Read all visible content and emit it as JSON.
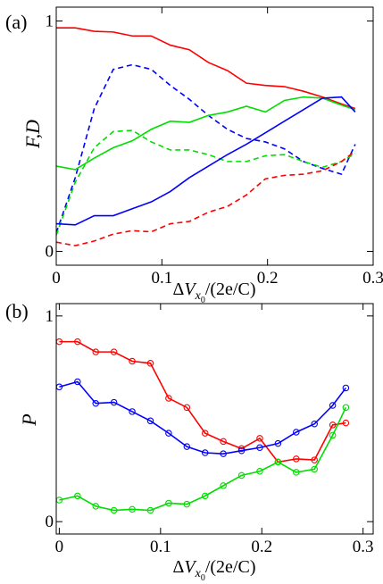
{
  "chart_data": [
    {
      "panel_label": "(a)",
      "type": "line",
      "xlabel": {
        "delta": "Δ",
        "var": "V",
        "sub": "x",
        "subsub": "0",
        "rest": "/(2e/C)"
      },
      "ylabel": "F,D",
      "xlim": [
        0,
        0.3
      ],
      "ylim": [
        -0.06,
        1.06
      ],
      "xticks": [
        0,
        0.1,
        0.2,
        0.3
      ],
      "xtick_labels": [
        "0",
        "0.1",
        "0.2",
        "0.3"
      ],
      "yticks": [
        0,
        1
      ],
      "ytick_labels": [
        "0",
        "1"
      ],
      "series": [
        {
          "color": "#ff0000",
          "style": "solid",
          "x": [
            0,
            0.018,
            0.036,
            0.054,
            0.072,
            0.09,
            0.108,
            0.126,
            0.144,
            0.162,
            0.18,
            0.198,
            0.216,
            0.234,
            0.252,
            0.27,
            0.283
          ],
          "y": [
            0.97,
            0.97,
            0.955,
            0.952,
            0.935,
            0.935,
            0.895,
            0.875,
            0.82,
            0.785,
            0.73,
            0.72,
            0.715,
            0.695,
            0.67,
            0.64,
            0.62
          ]
        },
        {
          "color": "#0000ff",
          "style": "dashed",
          "x": [
            0,
            0.018,
            0.036,
            0.054,
            0.072,
            0.09,
            0.108,
            0.126,
            0.144,
            0.162,
            0.18,
            0.198,
            0.216,
            0.234,
            0.252,
            0.27,
            0.283
          ],
          "y": [
            0.08,
            0.32,
            0.62,
            0.79,
            0.81,
            0.79,
            0.72,
            0.66,
            0.59,
            0.53,
            0.49,
            0.475,
            0.445,
            0.39,
            0.36,
            0.335,
            0.465
          ]
        },
        {
          "color": "#00dd00",
          "style": "solid",
          "x": [
            0,
            0.018,
            0.036,
            0.054,
            0.072,
            0.09,
            0.108,
            0.126,
            0.144,
            0.162,
            0.18,
            0.198,
            0.216,
            0.234,
            0.252,
            0.27,
            0.283
          ],
          "y": [
            0.37,
            0.355,
            0.405,
            0.45,
            0.48,
            0.53,
            0.565,
            0.56,
            0.59,
            0.605,
            0.63,
            0.605,
            0.655,
            0.67,
            0.665,
            0.635,
            0.615
          ]
        },
        {
          "color": "#00dd00",
          "style": "dashed",
          "x": [
            0,
            0.018,
            0.036,
            0.054,
            0.072,
            0.09,
            0.108,
            0.126,
            0.144,
            0.162,
            0.18,
            0.198,
            0.216,
            0.234,
            0.252,
            0.27,
            0.283
          ],
          "y": [
            0.07,
            0.3,
            0.45,
            0.52,
            0.525,
            0.475,
            0.44,
            0.44,
            0.42,
            0.39,
            0.39,
            0.415,
            0.42,
            0.39,
            0.365,
            0.39,
            0.425
          ]
        },
        {
          "color": "#0000ff",
          "style": "solid",
          "x": [
            0,
            0.018,
            0.036,
            0.054,
            0.072,
            0.09,
            0.108,
            0.126,
            0.144,
            0.162,
            0.18,
            0.198,
            0.216,
            0.234,
            0.252,
            0.27,
            0.283
          ],
          "y": [
            0.12,
            0.115,
            0.155,
            0.155,
            0.185,
            0.215,
            0.26,
            0.32,
            0.37,
            0.42,
            0.465,
            0.515,
            0.565,
            0.615,
            0.665,
            0.67,
            0.605
          ]
        },
        {
          "color": "#ff0000",
          "style": "dashed",
          "x": [
            0,
            0.018,
            0.036,
            0.054,
            0.072,
            0.09,
            0.108,
            0.126,
            0.144,
            0.162,
            0.18,
            0.198,
            0.216,
            0.234,
            0.252,
            0.27,
            0.283
          ],
          "y": [
            0.04,
            0.025,
            0.045,
            0.075,
            0.09,
            0.085,
            0.12,
            0.13,
            0.17,
            0.195,
            0.245,
            0.315,
            0.33,
            0.335,
            0.35,
            0.39,
            0.435
          ]
        }
      ]
    },
    {
      "panel_label": "(b)",
      "type": "line",
      "markers": "circle",
      "xlabel": {
        "delta": "Δ",
        "var": "V",
        "sub": "x",
        "subsub": "0",
        "rest": "/(2e/C)"
      },
      "ylabel": "P",
      "xlim": [
        -0.003,
        0.31
      ],
      "ylim": [
        -0.06,
        1.06
      ],
      "xticks": [
        0,
        0.1,
        0.2,
        0.3
      ],
      "xtick_labels": [
        "0",
        "0.1",
        "0.2",
        "0.3"
      ],
      "yticks": [
        0,
        1
      ],
      "ytick_labels": [
        "0",
        "1"
      ],
      "series": [
        {
          "color": "#ff0000",
          "style": "solid",
          "x": [
            0,
            0.018,
            0.036,
            0.054,
            0.072,
            0.09,
            0.108,
            0.126,
            0.144,
            0.162,
            0.18,
            0.198,
            0.216,
            0.234,
            0.252,
            0.27,
            0.283
          ],
          "y": [
            0.875,
            0.875,
            0.825,
            0.825,
            0.78,
            0.77,
            0.6,
            0.555,
            0.43,
            0.39,
            0.355,
            0.405,
            0.29,
            0.305,
            0.3,
            0.47,
            0.48
          ]
        },
        {
          "color": "#0000ff",
          "style": "solid",
          "x": [
            0,
            0.018,
            0.036,
            0.054,
            0.072,
            0.09,
            0.108,
            0.126,
            0.144,
            0.162,
            0.18,
            0.198,
            0.216,
            0.234,
            0.252,
            0.27,
            0.283
          ],
          "y": [
            0.655,
            0.68,
            0.575,
            0.58,
            0.535,
            0.49,
            0.43,
            0.365,
            0.335,
            0.33,
            0.345,
            0.36,
            0.38,
            0.435,
            0.475,
            0.565,
            0.65
          ]
        },
        {
          "color": "#00dd00",
          "style": "solid",
          "x": [
            0,
            0.018,
            0.036,
            0.054,
            0.072,
            0.09,
            0.108,
            0.126,
            0.144,
            0.162,
            0.18,
            0.198,
            0.216,
            0.234,
            0.252,
            0.27,
            0.283
          ],
          "y": [
            0.105,
            0.125,
            0.075,
            0.055,
            0.06,
            0.055,
            0.09,
            0.085,
            0.125,
            0.175,
            0.225,
            0.245,
            0.29,
            0.24,
            0.255,
            0.42,
            0.555
          ]
        }
      ]
    }
  ]
}
